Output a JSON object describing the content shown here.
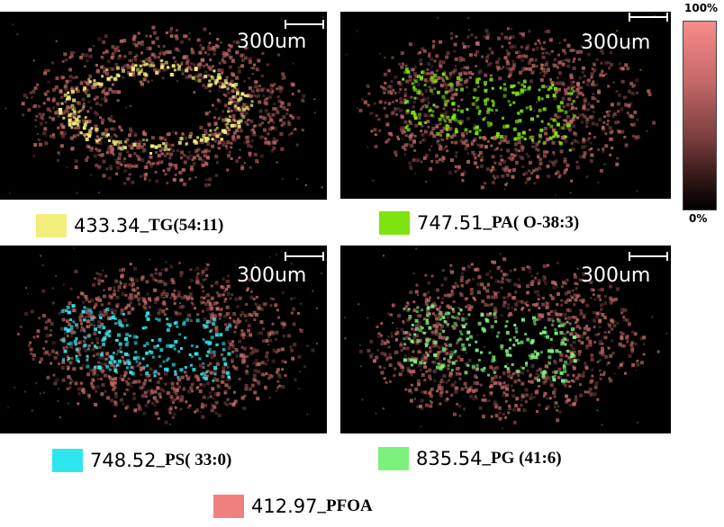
{
  "scale_label": "300um",
  "colorbar": {
    "max_label": "100%",
    "min_label": "0%"
  },
  "colors": {
    "tg": "#f4ee7c",
    "pa": "#7ee30e",
    "ps": "#2ee6ee",
    "pg": "#7cf27c",
    "pfoa": "#f08080",
    "background_tissue": "#c46a6a"
  },
  "legends": [
    {
      "mz": "433.34",
      "lipid": "_TG(54:11)",
      "color": "#f4ee7c"
    },
    {
      "mz": "747.51",
      "lipid": "_PA( O-38:3)",
      "color": "#7ee30e"
    },
    {
      "mz": "748.52 ",
      "lipid": "_PS( 33:0)",
      "color": "#2ee6ee"
    },
    {
      "mz": "835.54",
      "lipid": "_PG (41:6)",
      "color": "#7cf27c"
    },
    {
      "mz": "412.97 ",
      "lipid": "_PFOA",
      "color": "#f08080"
    }
  ]
}
